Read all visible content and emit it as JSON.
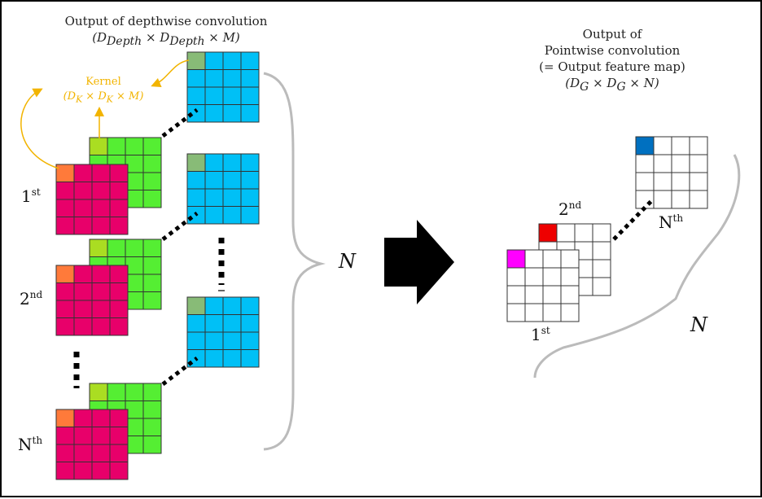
{
  "depthwise": {
    "title": "Output of depthwise convolution",
    "dims": "(D_Depth × D_Depth × M)"
  },
  "kernel": {
    "label": "Kernel",
    "dims": "(D_K × D_K × M)"
  },
  "pointwise": {
    "line1": "Output of",
    "line2": "Pointwise convolution",
    "line3": "(= Output feature map)",
    "dims": "(D_G × D_G × N)"
  },
  "ordinals": {
    "first_base": "1",
    "first_sup": "st",
    "second_base": "2",
    "second_sup": "nd",
    "nth_base": "N",
    "nth_sup": "th"
  },
  "n_label": "N",
  "colors": {
    "input_fill": "#e8006a",
    "input_corner": "#ff7a3a",
    "kernel_fill": "#55ee33",
    "kernel_corner": "#aadd22",
    "depth_fill": "#00c0f6",
    "depth_corner": "#88bb77",
    "kernel_text": "#f2b400",
    "out_magenta": "#ff00ff",
    "out_red": "#ee0000",
    "out_blue": "#0070c0",
    "brace": "#bbbbbb"
  }
}
